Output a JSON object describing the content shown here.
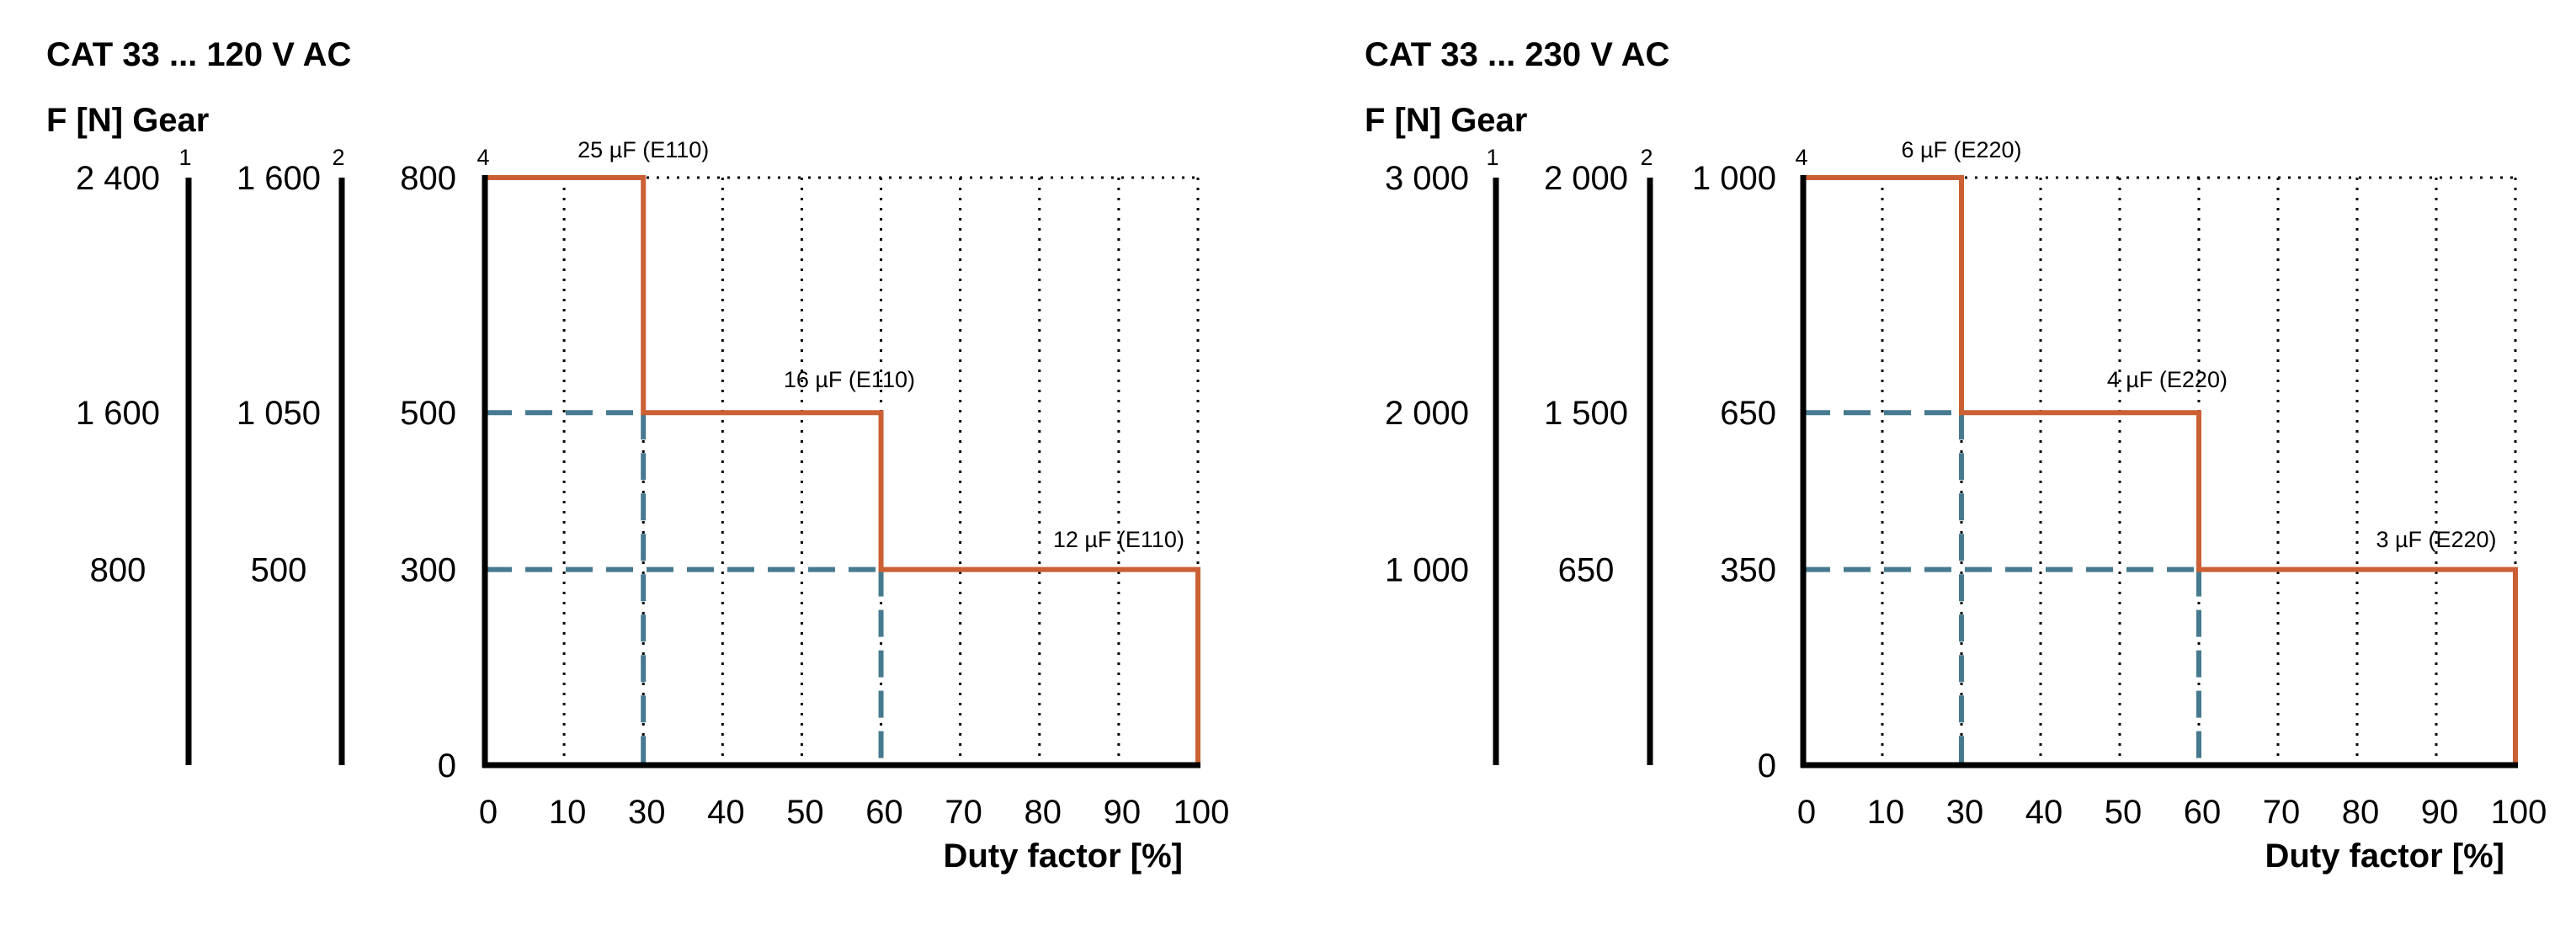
{
  "colors": {
    "limit_line": "#cc6035",
    "guide_line": "#477a8f",
    "axis": "#000000"
  },
  "chart_data": [
    {
      "type": "line",
      "title": "CAT 33 ... 120 V AC",
      "ylabel": "F [N] Gear",
      "xlabel": "Duty factor [%]",
      "x_ticks": [
        "0",
        "10",
        "30",
        "40",
        "50",
        "60",
        "70",
        "80",
        "90",
        "100"
      ],
      "grid": "dotted vertical",
      "gear_axes": [
        {
          "name": "1",
          "ticks": [
            "2 400",
            "1 600",
            "800"
          ]
        },
        {
          "name": "2",
          "ticks": [
            "1 600",
            "1 050",
            "500"
          ]
        },
        {
          "name": "4",
          "ticks": [
            "800",
            "500",
            "300",
            "0"
          ]
        }
      ],
      "y_levels": [
        800,
        500,
        300,
        0
      ],
      "steps": [
        {
          "x_from": 0,
          "x_to": 30,
          "y": 800,
          "label": "25 µF (E110)"
        },
        {
          "x_from": 30,
          "x_to": 60,
          "y": 500,
          "label": "16 µF (E110)"
        },
        {
          "x_from": 60,
          "x_to": 100,
          "y": 300,
          "label": "12 µF (E110)"
        }
      ],
      "guides": [
        {
          "x": 30,
          "y": 500
        },
        {
          "x": 60,
          "y": 300
        }
      ]
    },
    {
      "type": "line",
      "title": "CAT 33 ... 230 V AC",
      "ylabel": "F [N] Gear",
      "xlabel": "Duty factor [%]",
      "x_ticks": [
        "0",
        "10",
        "30",
        "40",
        "50",
        "60",
        "70",
        "80",
        "90",
        "100"
      ],
      "grid": "dotted vertical",
      "gear_axes": [
        {
          "name": "1",
          "ticks": [
            "3 000",
            "2 000",
            "1 000"
          ]
        },
        {
          "name": "2",
          "ticks": [
            "2 000",
            "1 500",
            "650"
          ]
        },
        {
          "name": "4",
          "ticks": [
            "1 000",
            "650",
            "350",
            "0"
          ]
        }
      ],
      "y_levels": [
        1000,
        650,
        350,
        0
      ],
      "steps": [
        {
          "x_from": 0,
          "x_to": 30,
          "y": 1000,
          "label": "6 µF (E220)"
        },
        {
          "x_from": 30,
          "x_to": 60,
          "y": 650,
          "label": "4 µF (E220)"
        },
        {
          "x_from": 60,
          "x_to": 100,
          "y": 350,
          "label": "3 µF (E220)"
        }
      ],
      "guides": [
        {
          "x": 30,
          "y": 650
        },
        {
          "x": 60,
          "y": 350
        }
      ]
    }
  ]
}
